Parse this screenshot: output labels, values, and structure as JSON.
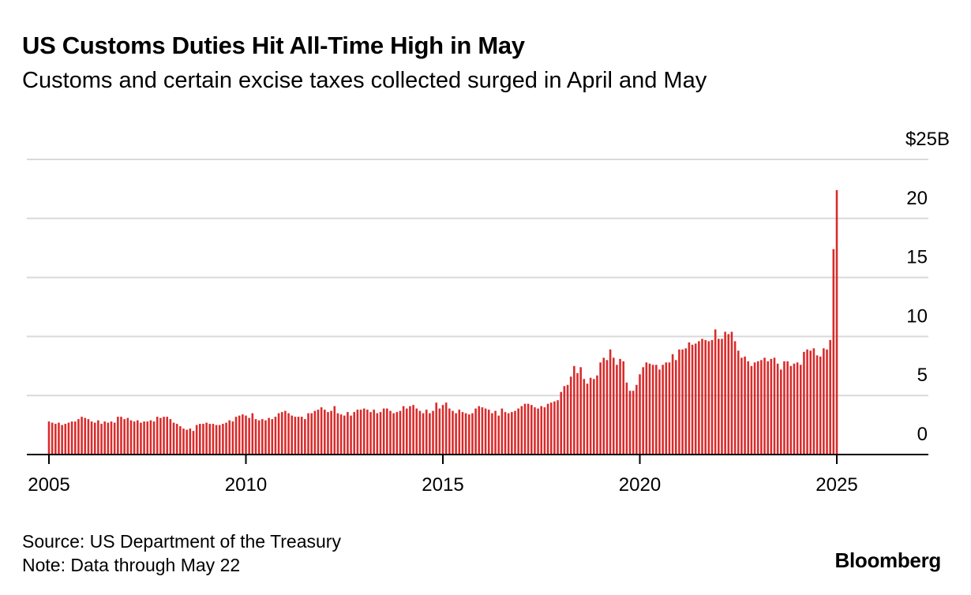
{
  "title": "US Customs Duties Hit All-Time High in May",
  "subtitle": "Customs and certain excise taxes collected surged in April and May",
  "source": "Source: US Department of the Treasury",
  "note": "Note: Data through May 22",
  "brand": "Bloomberg",
  "colors": {
    "bar": "#d92b2b",
    "grid": "#d9d9d9",
    "axis": "#000000"
  },
  "chart_data": {
    "type": "bar",
    "title": "US Customs Duties Hit All-Time High in May",
    "xlabel": "",
    "ylabel": "",
    "y_unit_label": "$25B",
    "ylim": [
      0,
      25
    ],
    "yticks": [
      0,
      5,
      10,
      15,
      20,
      25
    ],
    "ytick_labels": [
      "0",
      "5",
      "10",
      "15",
      "20",
      "$25B"
    ],
    "xticks": [
      2005,
      2010,
      2015,
      2020,
      2025
    ],
    "xtick_labels": [
      "2005",
      "2010",
      "2015",
      "2020",
      "2025"
    ],
    "x_range": [
      2005,
      2027.3
    ],
    "x_start": "2005-01",
    "x_frequency": "monthly",
    "grid": true,
    "series": [
      {
        "values": [
          2.8,
          2.7,
          2.6,
          2.7,
          2.5,
          2.6,
          2.7,
          2.8,
          2.8,
          3.0,
          3.2,
          3.1,
          3.0,
          2.8,
          2.7,
          2.9,
          2.6,
          2.8,
          2.7,
          2.8,
          2.7,
          3.2,
          3.2,
          3.0,
          3.1,
          2.9,
          2.8,
          2.9,
          2.7,
          2.8,
          2.8,
          2.9,
          2.8,
          3.2,
          3.1,
          3.2,
          3.2,
          3.0,
          2.7,
          2.6,
          2.4,
          2.2,
          2.1,
          2.2,
          2.0,
          2.5,
          2.6,
          2.6,
          2.7,
          2.6,
          2.6,
          2.5,
          2.5,
          2.6,
          2.7,
          2.9,
          2.8,
          3.2,
          3.3,
          3.4,
          3.3,
          3.1,
          3.5,
          3.0,
          2.9,
          3.0,
          2.9,
          3.1,
          3.0,
          3.2,
          3.5,
          3.6,
          3.7,
          3.5,
          3.3,
          3.2,
          3.2,
          3.2,
          3.0,
          3.5,
          3.5,
          3.7,
          3.8,
          4.0,
          3.8,
          3.6,
          3.7,
          4.1,
          3.5,
          3.4,
          3.3,
          3.6,
          3.3,
          3.6,
          3.8,
          3.8,
          3.9,
          3.8,
          3.6,
          3.8,
          3.5,
          3.6,
          3.9,
          3.9,
          3.7,
          3.5,
          3.6,
          3.7,
          4.1,
          3.9,
          4.1,
          4.2,
          3.9,
          3.7,
          3.5,
          3.8,
          3.5,
          3.7,
          4.4,
          3.9,
          4.2,
          4.4,
          3.9,
          3.7,
          3.5,
          3.8,
          3.6,
          3.5,
          3.4,
          3.5,
          3.9,
          4.1,
          4.0,
          3.9,
          3.8,
          3.5,
          3.7,
          3.3,
          3.9,
          3.6,
          3.5,
          3.6,
          3.7,
          3.9,
          4.1,
          4.3,
          4.3,
          4.2,
          4.0,
          3.9,
          4.1,
          4.0,
          4.3,
          4.4,
          4.5,
          4.6,
          5.3,
          5.8,
          5.9,
          6.6,
          7.5,
          6.9,
          7.4,
          6.4,
          6.0,
          6.5,
          6.4,
          6.7,
          7.8,
          8.2,
          8.0,
          8.9,
          8.2,
          7.6,
          8.1,
          7.9,
          6.1,
          5.4,
          5.4,
          5.9,
          6.8,
          7.4,
          7.8,
          7.7,
          7.6,
          7.6,
          7.2,
          7.6,
          7.8,
          7.8,
          8.5,
          8.0,
          8.9,
          8.9,
          9.0,
          9.5,
          9.3,
          9.4,
          9.6,
          9.8,
          9.7,
          9.6,
          9.7,
          10.6,
          9.8,
          9.8,
          10.4,
          10.2,
          10.4,
          9.6,
          8.8,
          8.2,
          8.3,
          7.9,
          7.5,
          7.8,
          7.9,
          8.0,
          8.2,
          7.9,
          8.1,
          8.2,
          7.7,
          7.2,
          7.9,
          7.9,
          7.5,
          7.7,
          7.8,
          7.6,
          8.7,
          8.9,
          8.8,
          9.0,
          8.4,
          8.3,
          9.0,
          8.9,
          9.7,
          17.4,
          22.4
        ]
      }
    ]
  }
}
